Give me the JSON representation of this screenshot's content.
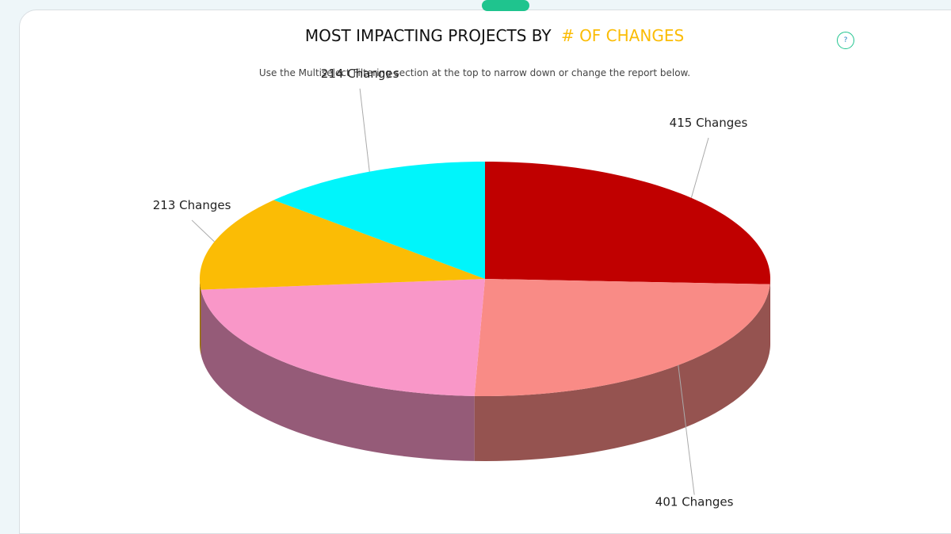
{
  "chart_data": {
    "type": "pie3d",
    "title": "MOST IMPACTING PROJECTS BY",
    "title_highlight": "# OF CHANGES",
    "subtitle": "Use the Multiselect Filtering section at the top to narrow down or change the report below.",
    "values": [
      415,
      401,
      370,
      213,
      214
    ],
    "value_labels": [
      "415 Changes",
      "401 Changes",
      null,
      "213 Changes",
      "214 Changes"
    ],
    "colors": [
      "#c00000",
      "#f98b86",
      "#f997c8",
      "#fbbc05",
      "#00f5fb"
    ]
  }
}
